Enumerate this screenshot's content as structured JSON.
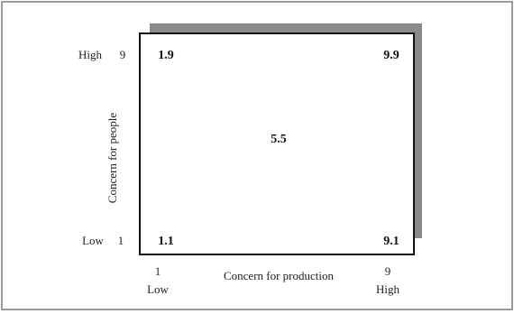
{
  "y_axis": {
    "title": "Concern for people",
    "high_label": "High",
    "high_value": "9",
    "low_label": "Low",
    "low_value": "1"
  },
  "x_axis": {
    "title": "Concern for production",
    "low_value": "1",
    "low_label": "Low",
    "high_value": "9",
    "high_label": "High"
  },
  "grid": {
    "top_left": "1.9",
    "top_right": "9.9",
    "center": "5.5",
    "bottom_left": "1.1",
    "bottom_right": "9.1"
  }
}
